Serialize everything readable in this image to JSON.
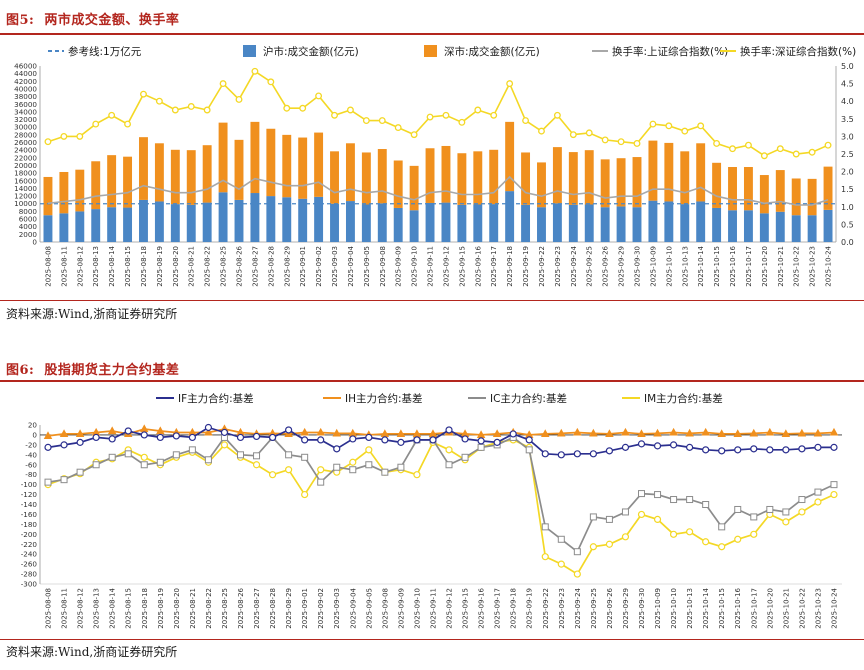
{
  "figure1": {
    "label": "图5:",
    "title": "两市成交金额、换手率",
    "source": "资料来源:Wind,浙商证券研究所",
    "colors": {
      "sh": "#4a86c5",
      "sz": "#f0901e",
      "ref": "#4a86c5",
      "sh_turn": "#a8a8a8",
      "sz_turn": "#f4d825"
    },
    "chart_data": {
      "type": "bar",
      "stacked": true,
      "legend": [
        "参考线:1万亿元",
        "沪市:成交金额(亿元)",
        "深市:成交金额(亿元)",
        "换手率:上证综合指数(%)",
        "换手率:深证综合指数(%)"
      ],
      "categories": [
        "2025-08-08",
        "2025-08-11",
        "2025-08-12",
        "2025-08-13",
        "2025-08-14",
        "2025-08-15",
        "2025-08-18",
        "2025-08-19",
        "2025-08-20",
        "2025-08-21",
        "2025-08-22",
        "2025-08-25",
        "2025-08-26",
        "2025-08-27",
        "2025-08-28",
        "2025-08-29",
        "2025-09-01",
        "2025-09-02",
        "2025-09-03",
        "2025-09-04",
        "2025-09-05",
        "2025-09-08",
        "2025-09-09",
        "2025-09-10",
        "2025-09-11",
        "2025-09-12",
        "2025-09-15",
        "2025-09-16",
        "2025-09-17",
        "2025-09-18",
        "2025-09-19",
        "2025-09-22",
        "2025-09-23",
        "2025-09-24",
        "2025-09-25",
        "2025-09-26",
        "2025-09-29",
        "2025-09-30",
        "2025-10-09",
        "2025-10-10",
        "2025-10-13",
        "2025-10-14",
        "2025-10-15",
        "2025-10-16",
        "2025-10-17",
        "2025-10-20",
        "2025-10-21",
        "2025-10-22",
        "2025-10-23",
        "2025-10-24"
      ],
      "x_tick_labels": [
        "2025-08-08",
        "2025-08-11",
        "2025-08-12",
        "2025-08-13",
        "2025-08-14",
        "2025-08-15",
        "2025-08-18",
        "2025-08-19",
        "2025-08-20",
        "2025-08-21",
        "2025-08-22",
        "2025-08-25",
        "2025-08-26",
        "2025-08-27",
        "2025-08-28",
        "2025-08-29",
        "2025-09-01",
        "2025-09-02",
        "2025-09-03",
        "2025-09-04",
        "2025-09-05",
        "2025-09-08",
        "2025-09-09",
        "2025-09-10",
        "2025-09-11",
        "2025-09-12",
        "2025-09-15",
        "2025-09-16",
        "2025-09-17",
        "2025-09-18",
        "2025-09-19",
        "2025-09-22",
        "2025-09-23",
        "2025-09-24",
        "2025-09-25",
        "2025-09-26",
        "2025-09-29",
        "2025-09-30",
        "2025-10-09",
        "2025-10-10",
        "2025-10-13",
        "2025-10-14",
        "2025-10-15",
        "2025-10-16",
        "2025-10-17",
        "2025-10-20",
        "2025-10-21",
        "2025-10-22",
        "2025-10-23",
        "2025-10-24"
      ],
      "series": [
        {
          "name": "沪市:成交金额(亿元)",
          "values": [
            7000,
            7500,
            8000,
            8600,
            9100,
            9000,
            11000,
            10600,
            9900,
            9700,
            10300,
            13000,
            11000,
            12800,
            12000,
            11700,
            11300,
            11800,
            10000,
            10700,
            9800,
            10100,
            8900,
            8300,
            10200,
            10300,
            9700,
            9800,
            9900,
            13300,
            9700,
            9100,
            10100,
            9700,
            9800,
            9100,
            9300,
            9100,
            10800,
            10600,
            9900,
            10600,
            8900,
            8300,
            8300,
            7500,
            7900,
            7000,
            7000,
            8400
          ]
        },
        {
          "name": "深市:成交金额(亿元)",
          "values": [
            10000,
            10800,
            10900,
            12500,
            13600,
            13300,
            16400,
            15200,
            14200,
            14300,
            15000,
            18200,
            15700,
            18600,
            17600,
            16300,
            16000,
            16800,
            13700,
            15100,
            13600,
            14200,
            12400,
            11600,
            14300,
            14800,
            13500,
            13900,
            14200,
            18100,
            13700,
            11700,
            14700,
            13800,
            14200,
            12500,
            12600,
            13100,
            15700,
            15300,
            13800,
            15200,
            11800,
            11300,
            11300,
            10000,
            10900,
            9600,
            9500,
            11300
          ]
        },
        {
          "name": "换手率:上证综合指数(%)",
          "axis": "right",
          "values": [
            1.1,
            1.15,
            1.2,
            1.3,
            1.35,
            1.4,
            1.6,
            1.5,
            1.4,
            1.4,
            1.5,
            1.75,
            1.5,
            1.8,
            1.7,
            1.6,
            1.6,
            1.7,
            1.4,
            1.5,
            1.4,
            1.45,
            1.3,
            1.2,
            1.4,
            1.45,
            1.35,
            1.35,
            1.4,
            1.85,
            1.4,
            1.3,
            1.45,
            1.35,
            1.4,
            1.25,
            1.3,
            1.3,
            1.5,
            1.5,
            1.4,
            1.55,
            1.3,
            1.2,
            1.2,
            1.1,
            1.15,
            1.05,
            1.05,
            1.2
          ]
        },
        {
          "name": "换手率:深证综合指数(%)",
          "axis": "right",
          "values": [
            2.85,
            3.0,
            3.0,
            3.35,
            3.6,
            3.35,
            4.2,
            4.0,
            3.75,
            3.85,
            3.75,
            4.5,
            4.05,
            4.85,
            4.55,
            3.8,
            3.8,
            4.15,
            3.6,
            3.75,
            3.45,
            3.45,
            3.25,
            3.05,
            3.55,
            3.6,
            3.4,
            3.75,
            3.6,
            4.5,
            3.45,
            3.15,
            3.6,
            3.05,
            3.1,
            2.9,
            2.85,
            2.8,
            3.35,
            3.3,
            3.15,
            3.3,
            2.8,
            2.65,
            2.75,
            2.45,
            2.65,
            2.5,
            2.55,
            2.75
          ]
        }
      ],
      "reference_line": {
        "name": "参考线:1万亿元",
        "value": 10000
      },
      "y_left": {
        "min": 0,
        "max": 46000,
        "step": 2000
      },
      "y_right": {
        "min": 0,
        "max": 5,
        "step": 0.5
      },
      "y_left_ticks": [
        "0",
        "2000",
        "4000",
        "6000",
        "8000",
        "10000",
        "12000",
        "14000",
        "16000",
        "18000",
        "20000",
        "22000",
        "24000",
        "26000",
        "28000",
        "30000",
        "32000",
        "34000",
        "36000",
        "38000",
        "40000",
        "42000",
        "44000",
        "46000"
      ],
      "y_right_ticks": [
        "0.0",
        "0.5",
        "1.0",
        "1.5",
        "2.0",
        "2.5",
        "3.0",
        "3.5",
        "4.0",
        "4.5",
        "5.0"
      ]
    }
  },
  "figure2": {
    "label": "图6:",
    "title": "股指期货主力合约基差",
    "source": "资料来源:Wind,浙商证券研究所",
    "colors": {
      "IF": "#2b2f8f",
      "IH": "#f0901e",
      "IC": "#8c8c8c",
      "IM": "#f4d825"
    },
    "chart_data": {
      "type": "line",
      "legend": [
        "IF主力合约:基差",
        "IH主力合约:基差",
        "IC主力合约:基差",
        "IM主力合约:基差"
      ],
      "x_tick_labels": [
        "2025-08-08",
        "2025-08-11",
        "2025-08-12",
        "2025-08-13",
        "2025-08-14",
        "2025-08-15",
        "2025-08-18",
        "2025-08-19",
        "2025-08-20",
        "2025-08-21",
        "2025-08-22",
        "2025-08-25",
        "2025-08-26",
        "2025-08-27",
        "2025-08-28",
        "2025-08-29",
        "2025-09-01",
        "2025-09-02",
        "2025-09-03",
        "2025-09-04",
        "2025-09-05",
        "2025-09-08",
        "2025-09-09",
        "2025-09-10",
        "2025-09-11",
        "2025-09-12",
        "2025-09-15",
        "2025-09-16",
        "2025-09-17",
        "2025-09-18",
        "2025-09-19",
        "2025-09-22",
        "2025-09-23",
        "2025-09-24",
        "2025-09-25",
        "2025-09-26",
        "2025-09-29",
        "2025-09-30",
        "2025-10-09",
        "2025-10-10",
        "2025-10-13",
        "2025-10-14",
        "2025-10-15",
        "2025-10-16",
        "2025-10-17",
        "2025-10-20",
        "2025-10-21",
        "2025-10-22",
        "2025-10-23",
        "2025-10-24"
      ],
      "series": [
        {
          "name": "IF主力合约:基差",
          "marker": "circle",
          "values": [
            -25,
            -20,
            -15,
            -5,
            -8,
            8,
            0,
            -5,
            -2,
            -5,
            15,
            5,
            -5,
            -3,
            -5,
            10,
            -10,
            -10,
            -28,
            -8,
            -5,
            -10,
            -15,
            -10,
            -10,
            10,
            -8,
            -12,
            -15,
            2,
            -10,
            -38,
            -40,
            -38,
            -38,
            -32,
            -25,
            -18,
            -22,
            -20,
            -25,
            -30,
            -32,
            -30,
            -28,
            -30,
            -30,
            -28,
            -25,
            -25
          ]
        },
        {
          "name": "IH主力合约:基差",
          "marker": "triangle",
          "values": [
            -2,
            2,
            2,
            5,
            8,
            2,
            12,
            8,
            5,
            5,
            5,
            12,
            5,
            2,
            3,
            2,
            5,
            5,
            3,
            3,
            0,
            2,
            2,
            2,
            2,
            5,
            2,
            0,
            2,
            5,
            0,
            2,
            3,
            5,
            3,
            2,
            5,
            2,
            3,
            5,
            3,
            5,
            2,
            2,
            3,
            5,
            2,
            3,
            3,
            5
          ]
        },
        {
          "name": "IC主力合约:基差",
          "marker": "square",
          "values": [
            -95,
            -90,
            -75,
            -60,
            -45,
            -38,
            -60,
            -55,
            -40,
            -30,
            -50,
            -5,
            -40,
            -42,
            -5,
            -40,
            -45,
            -95,
            -65,
            -70,
            -60,
            -75,
            -65,
            -10,
            -10,
            -60,
            -45,
            -25,
            -20,
            -5,
            -30,
            -185,
            -210,
            -235,
            -165,
            -170,
            -155,
            -118,
            -120,
            -130,
            -130,
            -140,
            -185,
            -150,
            -165,
            -150,
            -155,
            -130,
            -115,
            -100
          ]
        },
        {
          "name": "IM主力合约:基差",
          "marker": "circle",
          "values": [
            -100,
            -88,
            -78,
            -55,
            -48,
            -30,
            -45,
            -60,
            -45,
            -35,
            -55,
            -20,
            -45,
            -60,
            -80,
            -70,
            -120,
            -70,
            -75,
            -55,
            -30,
            -75,
            -70,
            -80,
            -15,
            -30,
            -50,
            -25,
            -15,
            -10,
            -25,
            -245,
            -260,
            -280,
            -225,
            -220,
            -205,
            -160,
            -170,
            -200,
            -195,
            -215,
            -225,
            -210,
            -200,
            -160,
            -175,
            -155,
            -135,
            -120
          ]
        }
      ],
      "y": {
        "min": -300,
        "max": 20,
        "step": 20
      },
      "y_ticks": [
        "20",
        "0",
        "-20",
        "-40",
        "-60",
        "-80",
        "-100",
        "-120",
        "-140",
        "-160",
        "-180",
        "-200",
        "-220",
        "-240",
        "-260",
        "-280",
        "-300"
      ]
    }
  }
}
